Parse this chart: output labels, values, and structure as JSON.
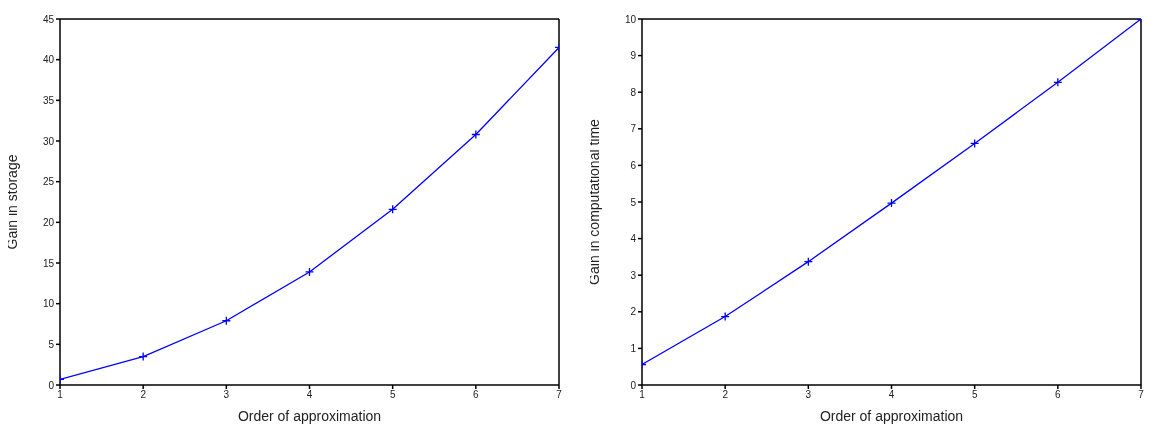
{
  "chart_data": [
    {
      "type": "line",
      "xlabel": "Order of approximation",
      "ylabel": "Gain in storage",
      "x": [
        1,
        2,
        3,
        4,
        5,
        6,
        7
      ],
      "xlim": [
        1,
        7
      ],
      "xticks": [
        1,
        2,
        3,
        4,
        5,
        6,
        7
      ],
      "ylim": [
        0,
        45
      ],
      "yticks": [
        0,
        5,
        10,
        15,
        20,
        25,
        30,
        35,
        40,
        45
      ],
      "grid": false,
      "legend": false,
      "marker": "cross",
      "line_style": "solid",
      "series": [
        {
          "color": "#0000ff",
          "values": [
            0.7,
            3.5,
            7.9,
            13.9,
            21.6,
            30.8,
            41.5
          ]
        }
      ]
    },
    {
      "type": "line",
      "xlabel": "Order of approximation",
      "ylabel": "Gain in computational time",
      "x": [
        1,
        2,
        3,
        4,
        5,
        6,
        7
      ],
      "xlim": [
        1,
        7
      ],
      "xticks": [
        1,
        2,
        3,
        4,
        5,
        6,
        7
      ],
      "ylim": [
        0,
        10
      ],
      "yticks": [
        0,
        1,
        2,
        3,
        4,
        5,
        6,
        7,
        8,
        9,
        10
      ],
      "grid": false,
      "legend": false,
      "marker": "cross",
      "line_style": "solid",
      "series": [
        {
          "color": "#0000ff",
          "values": [
            0.56,
            1.87,
            3.37,
            4.97,
            6.6,
            8.27,
            10.0
          ]
        }
      ]
    }
  ]
}
